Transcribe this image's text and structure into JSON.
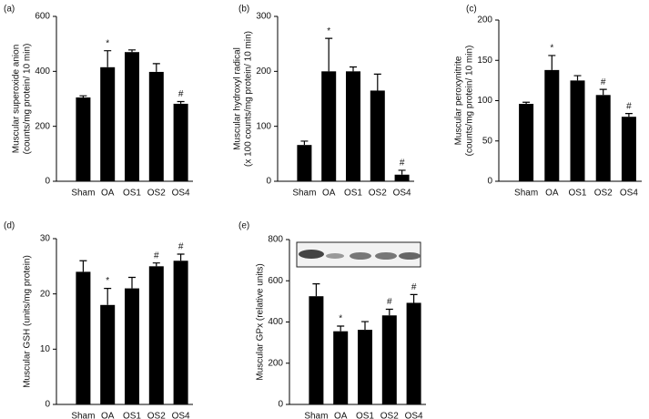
{
  "chart_data": [
    {
      "type": "bar",
      "panel_label": "(a)",
      "ylabel": [
        "Muscular superoxide anion",
        "(counts/mg protein/ 10 min)"
      ],
      "categories": [
        "Sham",
        "OA",
        "OS1",
        "OS2",
        "OS4"
      ],
      "values": [
        305,
        415,
        470,
        398,
        282
      ],
      "errors": [
        6,
        60,
        8,
        30,
        8
      ],
      "annotations": [
        null,
        "*",
        null,
        null,
        "#"
      ],
      "ylim": [
        0,
        600
      ],
      "yticks": [
        0,
        200,
        400,
        600
      ],
      "color": "#000000"
    },
    {
      "type": "bar",
      "panel_label": "(b)",
      "ylabel": [
        "Muscular hydroxyl radical",
        "(x 100 counts/mg protein/ 10 min)"
      ],
      "categories": [
        "Sham",
        "OA",
        "OS1",
        "OS2",
        "OS4"
      ],
      "values": [
        66,
        200,
        200,
        165,
        12
      ],
      "errors": [
        7,
        60,
        8,
        30,
        8
      ],
      "annotations": [
        null,
        "*",
        null,
        null,
        "#"
      ],
      "ylim": [
        0,
        300
      ],
      "yticks": [
        0,
        100,
        200,
        300
      ],
      "color": "#000000"
    },
    {
      "type": "bar",
      "panel_label": "(c)",
      "ylabel": [
        "Muscular peroxynitrite",
        "(counts/mg protein/ 10 min)"
      ],
      "categories": [
        "Sham",
        "OA",
        "OS1",
        "OS2",
        "OS4"
      ],
      "values": [
        96,
        138,
        125,
        107,
        80
      ],
      "errors": [
        2,
        18,
        6,
        7,
        4
      ],
      "annotations": [
        null,
        "*",
        null,
        "#",
        "#"
      ],
      "ylim": [
        0,
        200
      ],
      "yticks": [
        0,
        50,
        100,
        150,
        200
      ],
      "color": "#000000"
    },
    {
      "type": "bar",
      "panel_label": "(d)",
      "ylabel": [
        "Muscular GSH (units/mg protein)"
      ],
      "categories": [
        "Sham",
        "OA",
        "OS1",
        "OS2",
        "OS4"
      ],
      "values": [
        24,
        18,
        21,
        25,
        26
      ],
      "errors": [
        2,
        3,
        2,
        0.6,
        1.2
      ],
      "annotations": [
        null,
        "*",
        null,
        "#",
        "#"
      ],
      "ylim": [
        0,
        30
      ],
      "yticks": [
        0,
        10,
        20,
        30
      ],
      "color": "#000000"
    },
    {
      "type": "bar",
      "panel_label": "(e)",
      "ylabel": [
        "Muscular GPx (relative units)"
      ],
      "categories": [
        "Sham",
        "OA",
        "OS1",
        "OS2",
        "OS4"
      ],
      "values": [
        525,
        355,
        362,
        432,
        493
      ],
      "errors": [
        60,
        25,
        40,
        30,
        40
      ],
      "annotations": [
        null,
        "*",
        null,
        "#",
        "#"
      ],
      "ylim": [
        0,
        800
      ],
      "yticks": [
        0,
        200,
        400,
        600,
        800
      ],
      "color": "#000000"
    }
  ]
}
